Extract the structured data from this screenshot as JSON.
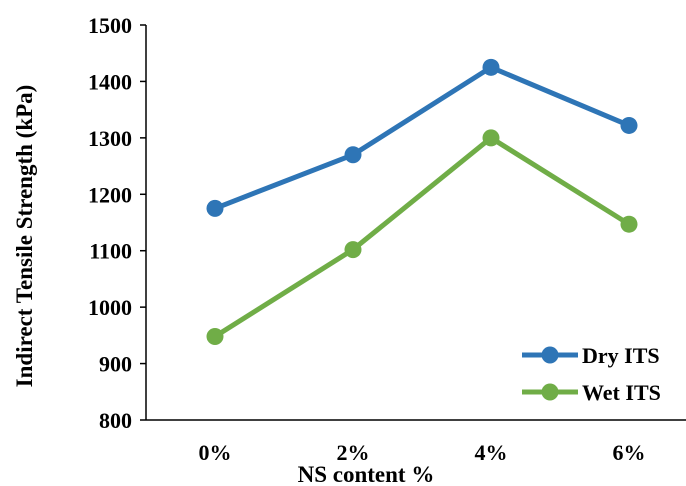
{
  "chart_data": {
    "type": "line",
    "title": "",
    "xlabel": "NS content %",
    "ylabel": "Indirect Tensile Strength (kPa)",
    "categories": [
      "0%",
      "2%",
      "4%",
      "6%"
    ],
    "ylim": [
      800,
      1500
    ],
    "yticks": [
      800,
      900,
      1000,
      1100,
      1200,
      1300,
      1400,
      1500
    ],
    "grid": false,
    "legend_position": "bottom-right",
    "series": [
      {
        "name": "Dry ITS",
        "color": "#2e75b6",
        "values": [
          1175,
          1270,
          1425,
          1322
        ]
      },
      {
        "name": "Wet ITS",
        "color": "#70ad47",
        "values": [
          948,
          1102,
          1300,
          1147
        ]
      }
    ]
  }
}
